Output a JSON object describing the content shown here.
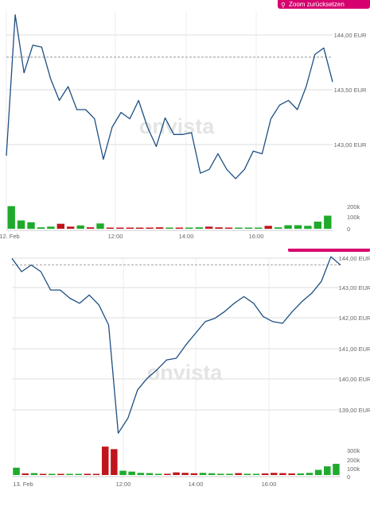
{
  "toolbar": {
    "zoom_reset_label": "Zoom zurücksetzen"
  },
  "watermark": "onvista",
  "colors": {
    "line": "#1e4f82",
    "up": "#1faa2c",
    "down": "#c0151c",
    "accent": "#d6006e",
    "grid": "#dcdcdc",
    "reference": "#888888"
  },
  "chart_data": [
    {
      "type": "line",
      "title": "",
      "grid": true,
      "x_ticks": [
        "12. Feb",
        "12:00",
        "14:00",
        "16:00"
      ],
      "y_ticks": [
        144.0,
        143.5,
        143.0
      ],
      "y_tick_labels": [
        "144,00 EUR",
        "143,50 EUR",
        "143,00 EUR"
      ],
      "ylim": [
        142.42,
        144.37
      ],
      "reference_line": 143.87,
      "series": [
        {
          "values": [
            142.8,
            144.33,
            143.7,
            144.0,
            143.98,
            143.64,
            143.4,
            143.55,
            143.3,
            143.3,
            143.2,
            142.76,
            143.11,
            143.27,
            143.2,
            143.4,
            143.11,
            142.9,
            143.21,
            143.03,
            143.03,
            143.05,
            142.61,
            142.65,
            142.82,
            142.65,
            142.55,
            142.65,
            142.85,
            142.82,
            143.2,
            143.35,
            143.4,
            143.3,
            143.55,
            143.9,
            143.97,
            143.6
          ]
        }
      ],
      "volume": {
        "labels": [
          "200k",
          "100k",
          "0"
        ],
        "ylim": [
          0,
          200
        ],
        "values": [
          190,
          70,
          55,
          12,
          18,
          42,
          18,
          28,
          12,
          45,
          8,
          8,
          6,
          8,
          6,
          12,
          8,
          6,
          6,
          12,
          18,
          12,
          8,
          8,
          8,
          8,
          25,
          12,
          30,
          30,
          25,
          60,
          110
        ],
        "direction": [
          "up",
          "up",
          "up",
          "up",
          "up",
          "down",
          "down",
          "up",
          "down",
          "up",
          "down",
          "down",
          "down",
          "down",
          "down",
          "down",
          "up",
          "down",
          "up",
          "up",
          "down",
          "down",
          "down",
          "up",
          "up",
          "up",
          "down",
          "up",
          "up",
          "up",
          "up",
          "up",
          "up"
        ]
      }
    },
    {
      "type": "line",
      "title": "",
      "grid": true,
      "x_ticks": [
        "13. Feb",
        "12:00",
        "14:00",
        "16:00"
      ],
      "y_ticks": [
        144.0,
        143.0,
        142.0,
        141.0,
        140.0,
        139.0
      ],
      "y_tick_labels": [
        "144,00 EUR",
        "143,00 EUR",
        "142,00 EUR",
        "141,00 EUR",
        "140,00 EUR",
        "139,00 EUR"
      ],
      "ylim": [
        138.47,
        144.03
      ],
      "reference_line": 143.8,
      "series": [
        {
          "values": [
            144.0,
            143.6,
            143.8,
            143.6,
            143.05,
            143.05,
            142.8,
            142.65,
            142.9,
            142.6,
            142.0,
            138.75,
            139.2,
            140.05,
            140.4,
            140.65,
            140.95,
            141.0,
            141.4,
            141.75,
            142.1,
            142.2,
            142.4,
            142.65,
            142.85,
            142.65,
            142.25,
            142.1,
            142.05,
            142.4,
            142.7,
            142.95,
            143.3,
            144.05,
            143.8
          ]
        }
      ],
      "volume": {
        "labels": [
          "300k",
          "200k",
          "100k",
          "0"
        ],
        "ylim": [
          0,
          350
        ],
        "values": [
          85,
          18,
          22,
          8,
          6,
          8,
          6,
          6,
          15,
          12,
          330,
          300,
          50,
          40,
          25,
          22,
          15,
          15,
          30,
          25,
          20,
          25,
          20,
          15,
          15,
          22,
          15,
          12,
          18,
          25,
          22,
          18,
          18,
          25,
          60,
          100,
          130
        ],
        "direction": [
          "up",
          "down",
          "up",
          "down",
          "up",
          "down",
          "up",
          "up",
          "down",
          "down",
          "down",
          "down",
          "up",
          "up",
          "up",
          "up",
          "up",
          "down",
          "down",
          "down",
          "down",
          "up",
          "up",
          "up",
          "up",
          "down",
          "up",
          "up",
          "down",
          "down",
          "down",
          "down",
          "up",
          "up",
          "up",
          "up",
          "up"
        ]
      }
    }
  ]
}
